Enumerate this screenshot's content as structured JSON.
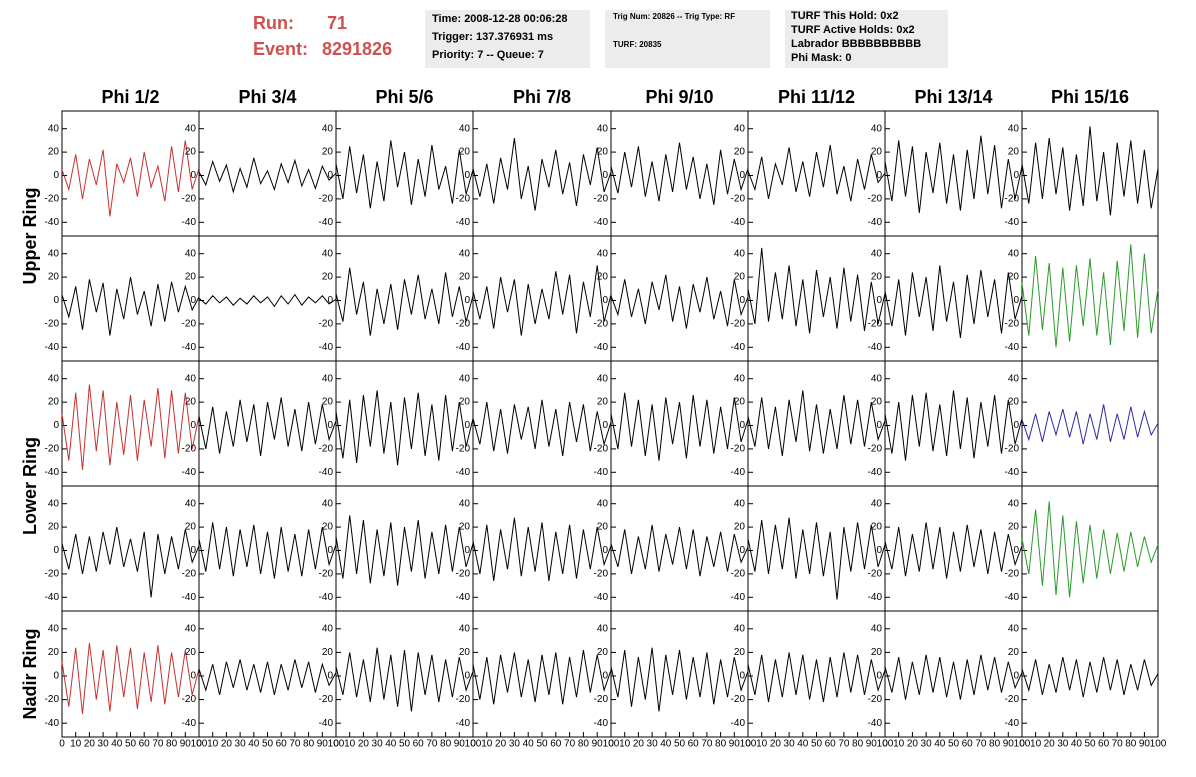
{
  "header": {
    "run_label": "Run:",
    "run": 71,
    "event_label": "Event:",
    "event": 8291826,
    "box1": [
      "Time: 2008-12-28 00:06:28",
      "Trigger: 137.376931 ms",
      "Priority: 7 -- Queue: 7"
    ],
    "box2": [
      "Trig Num: 20826 -- Trig Type: RF",
      "TURF: 20835"
    ],
    "box3": [
      "TURF This Hold: 0x2",
      "TURF Active Holds: 0x2",
      "Labrador BBBBBBBBBB",
      "Phi Mask: 0"
    ]
  },
  "columns": [
    "Phi 1/2",
    "Phi 3/4",
    "Phi 5/6",
    "Phi 7/8",
    "Phi 9/10",
    "Phi 11/12",
    "Phi 13/14",
    "Phi 15/16"
  ],
  "rows": [
    "Upper Ring",
    "Lower Ring",
    "Nadir Ring"
  ],
  "axes": {
    "x": [
      0,
      5,
      10,
      15,
      20,
      25,
      30,
      35,
      40,
      45,
      50,
      55,
      60,
      65,
      70,
      75,
      80,
      85,
      90,
      95,
      100
    ],
    "xlim": [
      0,
      100
    ],
    "ylim": [
      -50,
      50
    ],
    "xticks": [
      0,
      10,
      20,
      30,
      40,
      50,
      60,
      70,
      80,
      90,
      100
    ],
    "yticks": [
      -40,
      -20,
      0,
      20,
      40
    ]
  },
  "chart_data": [
    {
      "type": "line",
      "color": "#c83030",
      "values": [
        5,
        -12,
        18,
        -20,
        14,
        -8,
        22,
        -35,
        10,
        -6,
        15,
        -18,
        20,
        -10,
        8,
        -22,
        25,
        -14,
        30,
        -12,
        6
      ]
    },
    {
      "type": "line",
      "color": "#000000",
      "values": [
        3,
        -8,
        12,
        -5,
        9,
        -14,
        6,
        -10,
        15,
        -7,
        4,
        -12,
        10,
        -6,
        13,
        -9,
        5,
        -11,
        8,
        -4,
        2
      ]
    },
    {
      "type": "line",
      "color": "#000000",
      "values": [
        10,
        -20,
        25,
        -15,
        18,
        -28,
        12,
        -22,
        30,
        -10,
        20,
        -25,
        14,
        -18,
        26,
        -12,
        8,
        -24,
        22,
        -16,
        5
      ]
    },
    {
      "type": "line",
      "color": "#000000",
      "values": [
        6,
        -18,
        10,
        -24,
        15,
        -12,
        32,
        -20,
        8,
        -30,
        14,
        -10,
        22,
        -16,
        11,
        -26,
        18,
        -8,
        24,
        -14,
        3
      ]
    },
    {
      "type": "line",
      "color": "#000000",
      "values": [
        8,
        -15,
        20,
        -10,
        25,
        -18,
        12,
        -22,
        18,
        -14,
        28,
        -12,
        16,
        -20,
        10,
        -25,
        22,
        -16,
        14,
        -12,
        6
      ]
    },
    {
      "type": "line",
      "color": "#000000",
      "values": [
        4,
        -12,
        16,
        -20,
        10,
        -8,
        24,
        -14,
        12,
        -18,
        20,
        -10,
        26,
        -16,
        8,
        -22,
        14,
        -12,
        18,
        -6,
        2
      ]
    },
    {
      "type": "line",
      "color": "#000000",
      "values": [
        12,
        -22,
        30,
        -18,
        25,
        -32,
        20,
        -15,
        28,
        -24,
        18,
        -30,
        22,
        -20,
        34,
        -16,
        26,
        -28,
        14,
        -20,
        8
      ]
    },
    {
      "type": "line",
      "color": "#000000",
      "values": [
        10,
        -24,
        28,
        -20,
        32,
        -16,
        24,
        -30,
        18,
        -26,
        42,
        -22,
        20,
        -34,
        28,
        -18,
        30,
        -24,
        22,
        -28,
        6
      ]
    },
    {
      "type": "line",
      "color": "#000000",
      "values": [
        5,
        -14,
        12,
        -25,
        18,
        -10,
        15,
        -30,
        10,
        -16,
        20,
        -12,
        8,
        -22,
        14,
        -18,
        16,
        -10,
        12,
        -8,
        3
      ]
    },
    {
      "type": "line",
      "color": "#000000",
      "values": [
        2,
        -3,
        4,
        -2,
        3,
        -4,
        2,
        -3,
        4,
        -2,
        3,
        -5,
        4,
        -3,
        5,
        -4,
        3,
        -2,
        4,
        -3,
        1
      ]
    },
    {
      "type": "line",
      "color": "#000000",
      "values": [
        6,
        -18,
        28,
        -12,
        16,
        -30,
        10,
        -20,
        14,
        -25,
        18,
        -12,
        22,
        -16,
        10,
        -20,
        24,
        -14,
        12,
        -18,
        4
      ]
    },
    {
      "type": "line",
      "color": "#000000",
      "values": [
        8,
        -16,
        12,
        -24,
        20,
        -10,
        18,
        -30,
        14,
        -20,
        10,
        -16,
        25,
        -12,
        22,
        -28,
        16,
        -14,
        30,
        -18,
        5
      ]
    },
    {
      "type": "line",
      "color": "#000000",
      "values": [
        4,
        -12,
        18,
        -14,
        10,
        -20,
        16,
        -8,
        22,
        -18,
        12,
        -24,
        14,
        -10,
        20,
        -16,
        8,
        -22,
        18,
        -12,
        3
      ]
    },
    {
      "type": "line",
      "color": "#000000",
      "values": [
        10,
        -20,
        45,
        -18,
        24,
        -16,
        30,
        -22,
        18,
        -28,
        26,
        -14,
        20,
        -24,
        28,
        -18,
        22,
        -26,
        16,
        -20,
        6
      ]
    },
    {
      "type": "line",
      "color": "#000000",
      "values": [
        8,
        -22,
        18,
        -30,
        24,
        -14,
        20,
        -26,
        30,
        -18,
        16,
        -32,
        22,
        -20,
        26,
        -14,
        18,
        -28,
        24,
        -16,
        4
      ]
    },
    {
      "type": "line",
      "color": "#2a9a2a",
      "values": [
        15,
        -30,
        38,
        -25,
        32,
        -40,
        28,
        -35,
        30,
        -22,
        36,
        -30,
        24,
        -38,
        34,
        -26,
        48,
        -32,
        40,
        -28,
        10
      ]
    },
    {
      "type": "line",
      "color": "#c83030",
      "values": [
        10,
        -30,
        28,
        -38,
        35,
        -22,
        30,
        -34,
        20,
        -25,
        26,
        -30,
        22,
        -18,
        32,
        -28,
        30,
        -24,
        28,
        -20,
        8
      ]
    },
    {
      "type": "line",
      "color": "#000000",
      "values": [
        8,
        -20,
        16,
        -24,
        12,
        -18,
        22,
        -14,
        18,
        -26,
        20,
        -12,
        24,
        -18,
        14,
        -22,
        20,
        -16,
        18,
        -12,
        4
      ]
    },
    {
      "type": "line",
      "color": "#000000",
      "values": [
        12,
        -28,
        22,
        -32,
        26,
        -18,
        30,
        -24,
        20,
        -34,
        24,
        -20,
        28,
        -26,
        18,
        -30,
        26,
        -22,
        20,
        -18,
        6
      ]
    },
    {
      "type": "line",
      "color": "#000000",
      "values": [
        6,
        -16,
        20,
        -22,
        14,
        -24,
        18,
        -12,
        16,
        -20,
        22,
        -18,
        14,
        -26,
        20,
        -14,
        18,
        -22,
        12,
        -16,
        3
      ]
    },
    {
      "type": "line",
      "color": "#000000",
      "values": [
        10,
        -20,
        28,
        -18,
        22,
        -26,
        18,
        -30,
        24,
        -16,
        20,
        -28,
        26,
        -18,
        22,
        -24,
        16,
        -20,
        24,
        -14,
        5
      ]
    },
    {
      "type": "line",
      "color": "#000000",
      "values": [
        8,
        -18,
        24,
        -20,
        16,
        -26,
        22,
        -14,
        30,
        -22,
        18,
        -24,
        14,
        -20,
        26,
        -16,
        22,
        -18,
        20,
        -12,
        4
      ]
    },
    {
      "type": "line",
      "color": "#000000",
      "values": [
        10,
        -24,
        20,
        -30,
        26,
        -18,
        28,
        -22,
        18,
        -26,
        30,
        -20,
        24,
        -28,
        20,
        -18,
        26,
        -24,
        22,
        -16,
        6
      ]
    },
    {
      "type": "line",
      "color": "#2a2aa0",
      "values": [
        5,
        -12,
        10,
        -14,
        12,
        -8,
        14,
        -10,
        12,
        -16,
        10,
        -12,
        18,
        -14,
        10,
        -12,
        16,
        -10,
        12,
        -8,
        2
      ]
    },
    {
      "type": "line",
      "color": "#000000",
      "values": [
        6,
        -16,
        14,
        -20,
        12,
        -18,
        16,
        -12,
        20,
        -14,
        10,
        -18,
        16,
        -40,
        14,
        -20,
        12,
        -16,
        18,
        -10,
        4
      ]
    },
    {
      "type": "line",
      "color": "#000000",
      "values": [
        10,
        -18,
        24,
        -16,
        20,
        -22,
        18,
        -14,
        22,
        -20,
        16,
        -24,
        20,
        -18,
        14,
        -22,
        18,
        -16,
        20,
        -12,
        5
      ]
    },
    {
      "type": "line",
      "color": "#000000",
      "values": [
        12,
        -24,
        30,
        -20,
        26,
        -28,
        18,
        -22,
        24,
        -30,
        20,
        -18,
        26,
        -24,
        16,
        -20,
        22,
        -18,
        20,
        -14,
        6
      ]
    },
    {
      "type": "line",
      "color": "#000000",
      "values": [
        8,
        -20,
        22,
        -26,
        18,
        -16,
        28,
        -22,
        20,
        -18,
        24,
        -26,
        16,
        -20,
        22,
        -24,
        18,
        -16,
        20,
        -12,
        4
      ]
    },
    {
      "type": "line",
      "color": "#000000",
      "values": [
        6,
        -14,
        18,
        -20,
        12,
        -16,
        22,
        -18,
        14,
        -12,
        20,
        -16,
        18,
        -22,
        12,
        -14,
        16,
        -18,
        14,
        -10,
        3
      ]
    },
    {
      "type": "line",
      "color": "#000000",
      "values": [
        10,
        -18,
        26,
        -20,
        22,
        -16,
        28,
        -24,
        18,
        -20,
        24,
        -22,
        16,
        -42,
        20,
        -18,
        24,
        -16,
        22,
        -14,
        5
      ]
    },
    {
      "type": "line",
      "color": "#000000",
      "values": [
        8,
        -16,
        20,
        -22,
        14,
        -18,
        24,
        -16,
        20,
        -24,
        16,
        -18,
        22,
        -14,
        18,
        -20,
        16,
        -18,
        14,
        -12,
        4
      ]
    },
    {
      "type": "line",
      "color": "#2a9a2a",
      "values": [
        10,
        -20,
        35,
        -30,
        42,
        -38,
        30,
        -40,
        25,
        -28,
        22,
        -24,
        18,
        -20,
        15,
        -18,
        16,
        -14,
        12,
        -10,
        5
      ]
    },
    {
      "type": "line",
      "color": "#c83030",
      "values": [
        12,
        -26,
        24,
        -32,
        28,
        -20,
        22,
        -30,
        26,
        -18,
        24,
        -28,
        20,
        -22,
        26,
        -24,
        20,
        -18,
        22,
        -16,
        6
      ]
    },
    {
      "type": "line",
      "color": "#000000",
      "values": [
        6,
        -12,
        10,
        -16,
        12,
        -10,
        14,
        -12,
        10,
        -14,
        12,
        -16,
        10,
        -12,
        14,
        -10,
        12,
        -14,
        10,
        -8,
        3
      ]
    },
    {
      "type": "line",
      "color": "#000000",
      "values": [
        8,
        -16,
        20,
        -18,
        14,
        -22,
        24,
        -20,
        18,
        -26,
        22,
        -30,
        20,
        -16,
        18,
        -22,
        14,
        -18,
        16,
        -12,
        4
      ]
    },
    {
      "type": "line",
      "color": "#000000",
      "values": [
        10,
        -20,
        16,
        -24,
        18,
        -14,
        20,
        -18,
        14,
        -22,
        18,
        -16,
        20,
        -24,
        16,
        -18,
        22,
        -14,
        18,
        -12,
        5
      ]
    },
    {
      "type": "line",
      "color": "#000000",
      "values": [
        8,
        -18,
        22,
        -26,
        16,
        -20,
        24,
        -30,
        18,
        -16,
        22,
        -20,
        16,
        -18,
        20,
        -24,
        14,
        -18,
        16,
        -12,
        4
      ]
    },
    {
      "type": "line",
      "color": "#000000",
      "values": [
        10,
        -16,
        18,
        -22,
        14,
        -18,
        20,
        -16,
        18,
        -20,
        14,
        -22,
        16,
        -18,
        20,
        -14,
        18,
        -16,
        14,
        -12,
        5
      ]
    },
    {
      "type": "line",
      "color": "#000000",
      "values": [
        8,
        -14,
        16,
        -20,
        12,
        -16,
        18,
        -14,
        16,
        -18,
        12,
        -20,
        14,
        -16,
        18,
        -12,
        16,
        -14,
        12,
        -10,
        3
      ]
    },
    {
      "type": "line",
      "color": "#000000",
      "values": [
        6,
        -12,
        14,
        -16,
        10,
        -14,
        16,
        -12,
        14,
        -18,
        12,
        -14,
        16,
        -12,
        14,
        -16,
        10,
        -12,
        14,
        -8,
        2
      ]
    }
  ]
}
